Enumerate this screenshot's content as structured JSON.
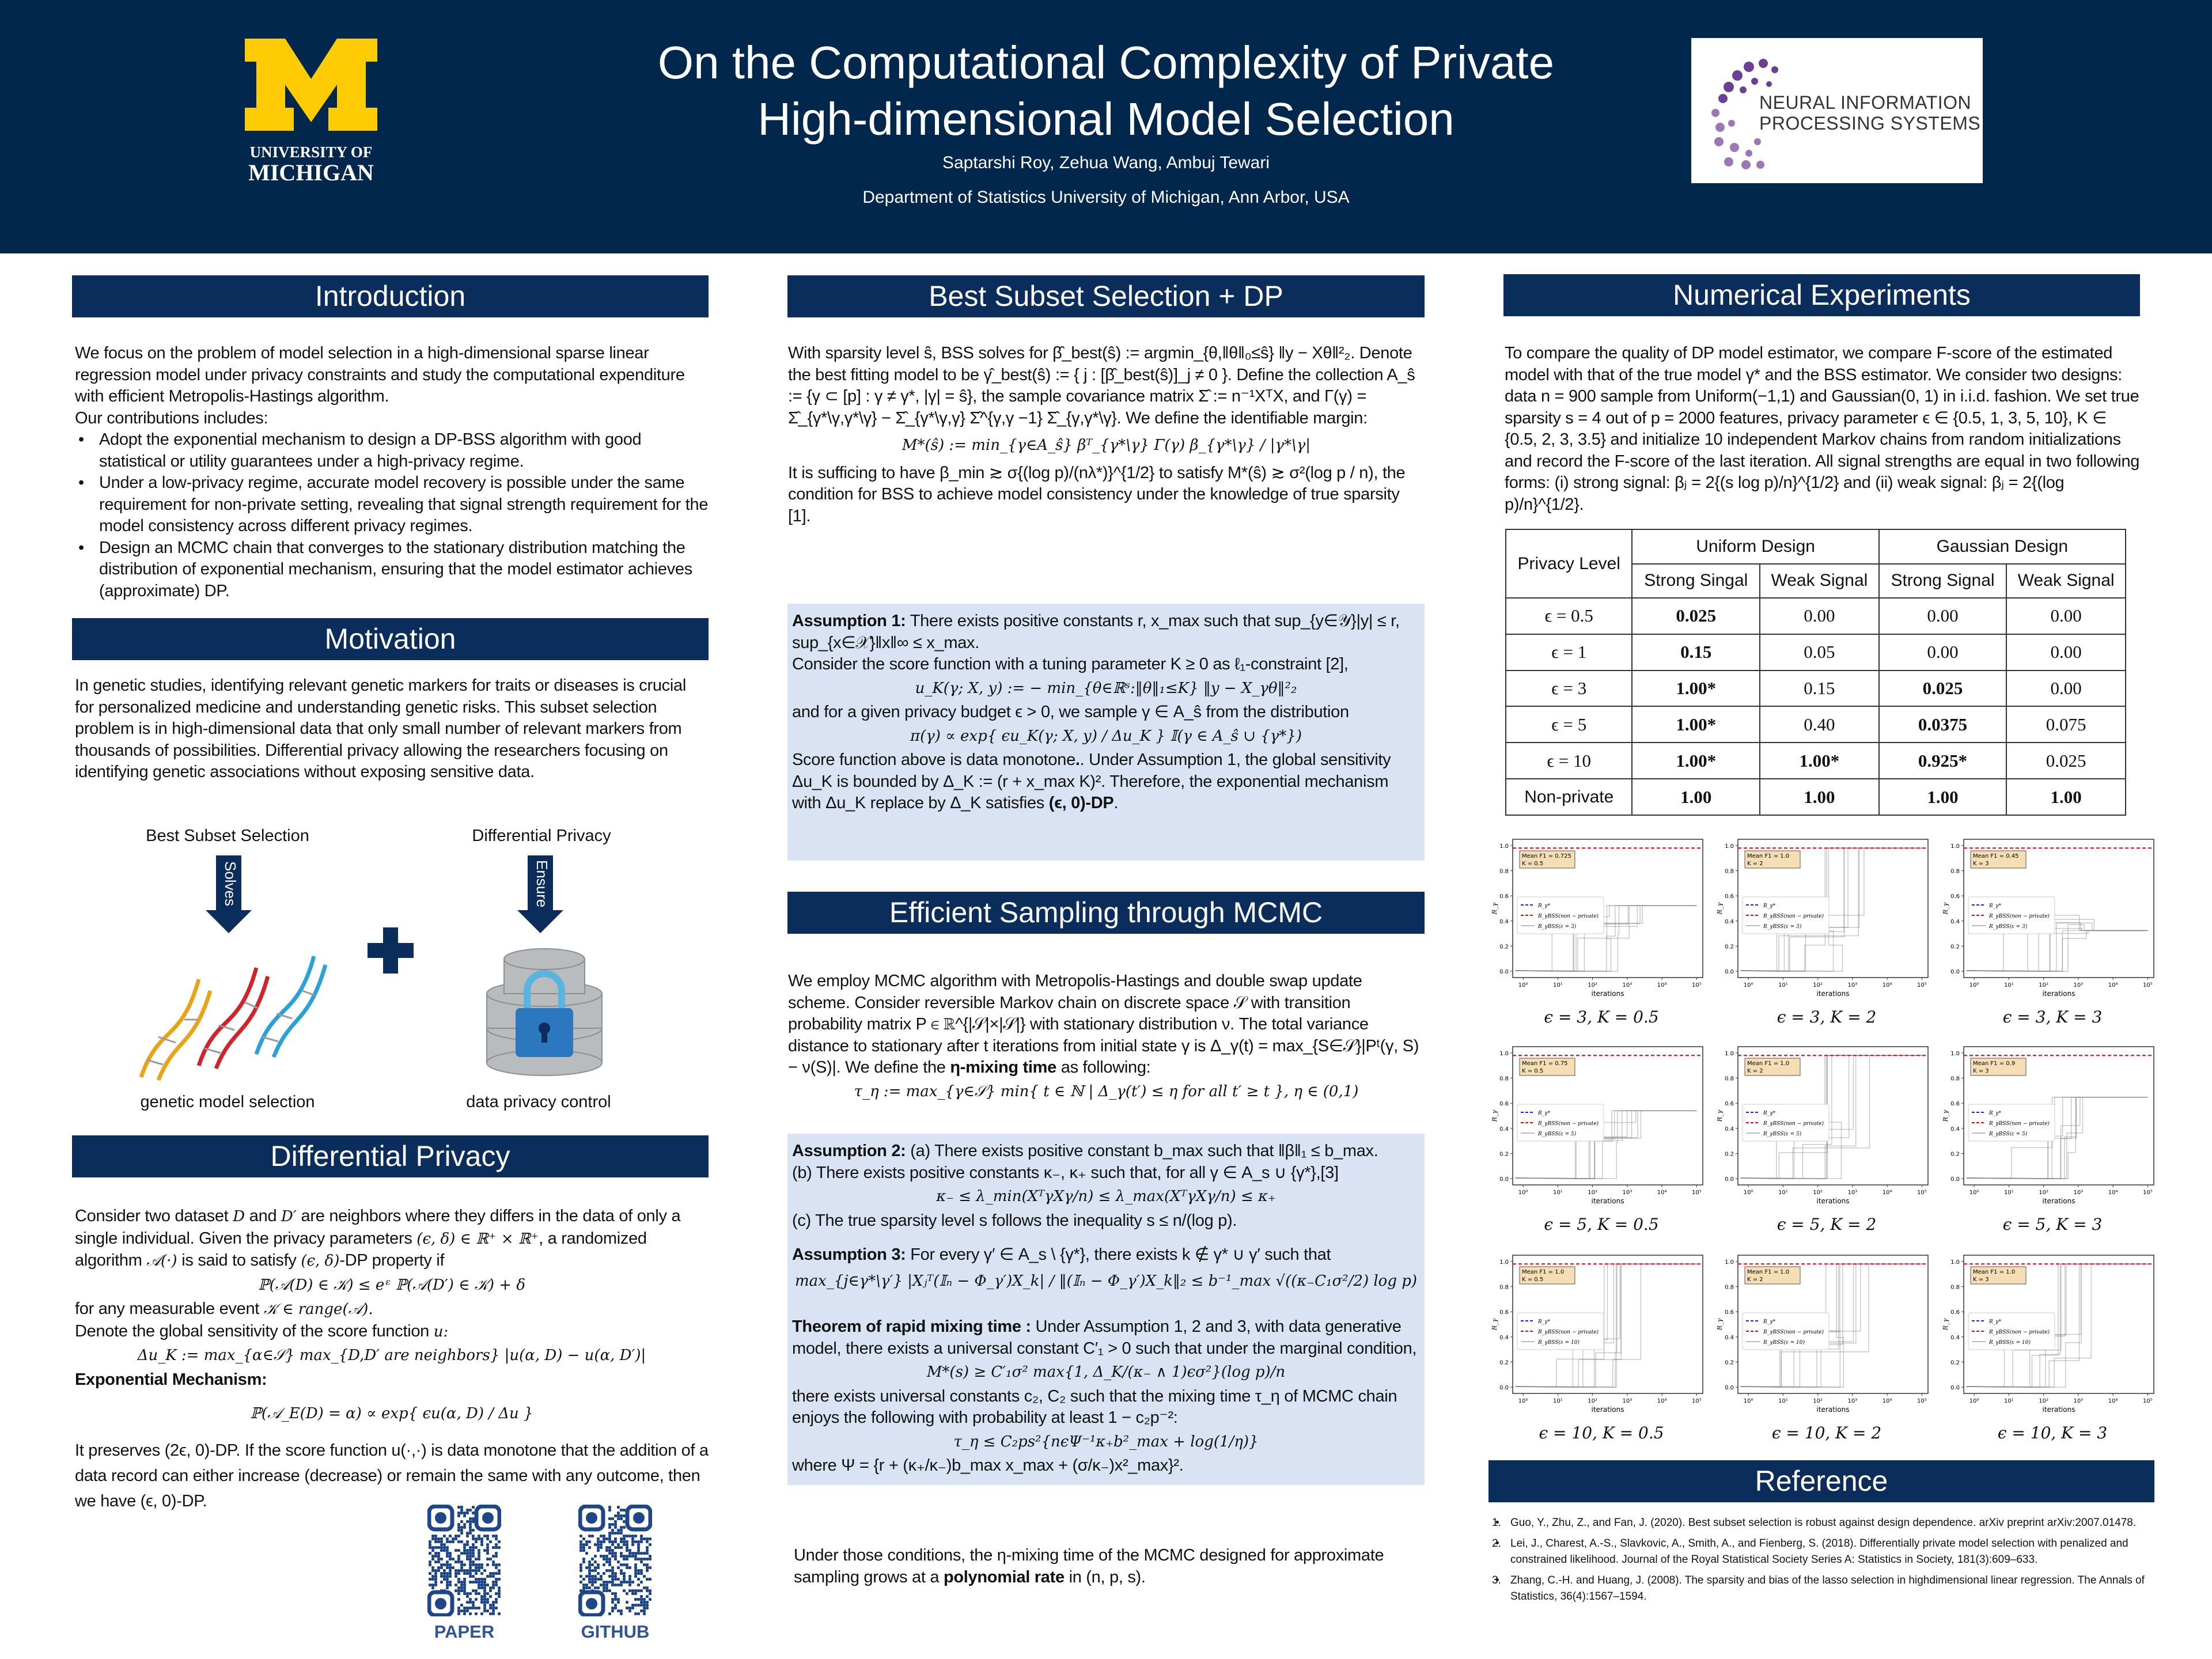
{
  "header": {
    "title_line1": "On the Computational Complexity of Private",
    "title_line2": "High-dimensional Model Selection",
    "authors": "Saptarshi Roy, Zehua Wang, Ambuj Tewari",
    "affiliation": "Department of Statistics University of Michigan, Ann Arbor, USA",
    "um_logo": {
      "line1": "UNIVERSITY OF",
      "line2": "MICHIGAN"
    },
    "neurips_logo": {
      "line1": "NEURAL INFORMATION",
      "line2": "PROCESSING SYSTEMS"
    }
  },
  "colors": {
    "navy": "#02274d",
    "section": "#0b2d5b",
    "box": "#dae3f3",
    "maize": "#ffcb05",
    "qr": "#1f4788"
  },
  "introduction": {
    "heading": "Introduction",
    "paragraph": "We focus on the problem of model selection in a high-dimensional sparse linear regression model under privacy constraints and study the computational expenditure with efficient Metropolis-Hastings algorithm.",
    "contributions_label": "Our contributions includes:",
    "bullets": [
      "Adopt the exponential mechanism to design a DP-BSS algorithm with good statistical or utility guarantees under a high-privacy regime.",
      "Under a low-privacy regime, accurate model recovery is possible under the same requirement for non-private setting, revealing that signal strength requirement for the model consistency across different privacy regimes.",
      "Design an MCMC chain that converges to the stationary distribution matching the distribution of exponential mechanism, ensuring that the model estimator achieves (approximate) DP."
    ]
  },
  "motivation": {
    "heading": "Motivation",
    "paragraph": "In genetic studies, identifying relevant genetic markers for traits or diseases is crucial for personalized medicine and understanding genetic risks. This subset selection problem is in high-dimensional data that only small number of relevant markers from thousands of possibilities. Differential privacy allowing the researchers focusing on identifying genetic associations without exposing sensitive data.",
    "diagram": {
      "left_label": "Best Subset Selection",
      "right_label": "Differential Privacy",
      "left_arrow": "Solves",
      "right_arrow": "Ensure",
      "left_caption": "genetic model selection",
      "right_caption": "data privacy control"
    }
  },
  "dp": {
    "heading": "Differential Privacy",
    "p1a": "Consider two dataset ",
    "p1m1": "D",
    "p1b": " and ",
    "p1m2": "D′",
    "p1c": " are neighbors where they differs in the data of only a single individual. Given the privacy parameters ",
    "p1m3": "(ϵ, δ) ∈ ℝ⁺ × ℝ⁺",
    "p1d": ", a randomized algorithm ",
    "p1m4": "𝒜(·)",
    "p1e": " is said to satisfy ",
    "p1m5": "(ϵ, δ)",
    "p1f": "-DP property if",
    "formula1": "ℙ(𝒜(D) ∈ 𝒦) ≤ eᵋ ℙ(𝒜(D′) ∈ 𝒦) + δ",
    "p2a": "for any measurable event ",
    "p2m": "𝒦 ∈ range(𝒜).",
    "p3a": "Denote the global sensitivity of the score function ",
    "p3m": "u:",
    "formula2": "Δu_K := max_{α∈𝒮} max_{D,D′ are neighbors} |u(α, D) − u(α, D′)|",
    "exp_label": "Exponential Mechanism:",
    "formula3": "ℙ(𝒜_E(D) = α) ∝ exp{ ϵu(α, D) / Δu }",
    "p4": "It preserves (2ϵ, 0)-DP. If the score function u(·,·) is data monotone that the addition of a data record can either increase (decrease) or remain the same with any outcome, then we have (ϵ, 0)-DP."
  },
  "qr": {
    "paper_label": "PAPER",
    "github_label": "GITHUB"
  },
  "bss": {
    "heading": "Best Subset Selection + DP",
    "p1": "With sparsity level ŝ, BSS solves for β̂_best(ŝ) := argmin_{θ,‖θ‖₀≤ŝ} ‖y − Xθ‖²₂. Denote the best fitting model to be γ̂_best(ŝ) := { j : [β̂_best(ŝ)]_j ≠ 0 }. Define the collection A_ŝ := {γ ⊂ [p] : γ ≠ γ*, |γ| = ŝ}, the sample covariance matrix Σ̂ := n⁻¹XᵀX, and Γ(γ) = Σ̂_{γ*\\γ,γ*\\γ} − Σ̂_{γ*\\γ,γ} Σ̂^{γ,γ −1} Σ̂_{γ,γ*\\γ}. We define the identifiable margin:",
    "formula": "M*(ŝ) := min_{γ∈A_ŝ}  βᵀ_{γ*\\γ} Γ(γ) β_{γ*\\γ} / |γ*\\γ|",
    "p2": "It is sufficing to have β_min ≳ σ{(log p)/(nλ*)}^{1/2} to satisfy M*(ŝ) ≳ σ²(log p / n), the condition for BSS to achieve model consistency under the knowledge of true sparsity [1].",
    "a1_label": "Assumption 1:",
    "a1_text": " There exists positive constants r, x_max such that sup_{y∈𝒴}|y| ≤ r, sup_{x∈𝒳}‖x‖∞ ≤ x_max.",
    "a1_p2": "Consider the score function with a tuning parameter K ≥ 0 as ℓ₁-constraint [2],",
    "a1_formula1": "u_K(γ; X, y) := − min_{θ∈ℝˢ:‖θ‖₁≤K} ‖y − X_γθ‖²₂",
    "a1_p3": "and for a given privacy budget ϵ > 0, we sample γ ∈ A_ŝ from the distribution",
    "a1_formula2": "π(γ) ∝ exp{ ϵu_K(γ; X, y) / Δu_K } 𝕀(γ ∈ A_ŝ ∪ {γ*})",
    "a1_p4a": "Score function above is data monotone",
    "a1_p4b": ". Under Assumption 1, the global sensitivity Δu_K is bounded by Δ_K := (r + x_max K)². Therefore, the exponential mechanism with Δu_K replace by Δ_K satisfies ",
    "a1_p4c": "(ϵ, 0)-DP",
    "a1_p4d": "."
  },
  "mcmc": {
    "heading": "Efficient Sampling through MCMC",
    "p1a": "We employ MCMC algorithm with Metropolis-Hastings and double swap update scheme. Consider reversible Markov chain on discrete space 𝒮 with transition probability matrix P ∈ ℝ^{|𝒮|×|𝒮|} with stationary distribution ν. The total variance distance to stationary after t iterations from initial state γ is Δ_γ(t) = max_{S∈𝒮}|Pᵗ(γ, S) − ν(S)|. We define the ",
    "p1b": "η-mixing time",
    "p1c": " as following:",
    "formula": "τ_η := max_{γ∈𝒮} min{ t ∈ ℕ | Δ_γ(t′) ≤ η for all t′ ≥ t }, η ∈ (0,1)",
    "a2_label": "Assumption 2:",
    "a2_a": " (a) There exists positive constant b_max such that ‖β‖₁ ≤ b_max.",
    "a2_b": "(b) There exists positive constants κ₋, κ₊ such that, for all γ ∈ A_s ∪ {γ*},[3]",
    "a2_formula": "κ₋ ≤ λ_min(XᵀγXγ/n) ≤ λ_max(XᵀγXγ/n) ≤ κ₊",
    "a2_c": "(c) The true sparsity level s follows the inequality s ≤ n/(log p).",
    "a3_label": "Assumption 3:",
    "a3_text": "  For every γ′ ∈ A_s \\ {γ*}, there exists k ∉ γ* ∪ γ′ such that",
    "a3_formula": "max_{j∈γ*\\γ′} |Xⱼᵀ(𝕀ₙ − Φ_γ′)X_k| / ‖(𝕀ₙ − Φ_γ′)X_k‖₂ ≤ b⁻¹_max √((κ₋C₁σ²/2) log p)",
    "thm_label": "Theorem of rapid mixing time :",
    "thm_text": " Under Assumption 1, 2 and 3, with data generative model, there exists a universal constant C′₁ > 0 such that under the marginal condition,",
    "thm_formula1": "M*(s) ≥ C′₁σ² max{1, Δ_K/(κ₋ ∧ 1)ϵσ²}(log p)/n",
    "thm_text2": "there exists universal constants c₂, C₂ such that the mixing time τ_η of MCMC chain enjoys the following with probability at least 1 − c₂p⁻²:",
    "thm_formula2": "τ_η ≤ C₂ps²{nϵΨ⁻¹κ₊b²_max + log(1/η)}",
    "thm_text3": "where Ψ = {r + (κ₊/κ₋)b_max x_max + (σ/κ₋)x²_max}².",
    "p_final_a": "Under those conditions, the η-mixing time of the MCMC designed for approximate sampling grows at a ",
    "p_final_b": "polynomial rate",
    "p_final_c": " in (n, p, s)."
  },
  "experiments": {
    "heading": "Numerical Experiments",
    "paragraph": "To compare the quality of DP model estimator, we compare F-score of the estimated model with that of the true model γ* and the BSS estimator. We consider two designs: data n = 900 sample from Uniform(−1,1) and Gaussian(0, 1) in i.i.d. fashion. We set true sparsity s = 4 out of p = 2000 features, privacy parameter ϵ ∈ {0.5, 1, 3, 5, 10}, K ∈ {0.5, 2, 3, 3.5} and initialize 10 independent Markov chains from random initializations and record the F-score of the last iteration. All signal strengths are equal in two following forms: (i) strong signal: βⱼ = 2{(s log p)/n}^{1/2}  and (ii) weak signal: βⱼ = 2{(log p)/n}^{1/2}.",
    "table": {
      "corner": "Privacy Level",
      "groups": [
        "Uniform Design",
        "Gaussian Design"
      ],
      "subheaders": [
        "Strong Singal",
        "Weak Signal",
        "Strong Signal",
        "Weak Signal"
      ],
      "rows": [
        {
          "label": "ϵ = 0.5",
          "cells": [
            {
              "v": "0.025",
              "b": true
            },
            {
              "v": "0.00"
            },
            {
              "v": "0.00"
            },
            {
              "v": "0.00"
            }
          ]
        },
        {
          "label": "ϵ = 1",
          "cells": [
            {
              "v": "0.15",
              "b": true
            },
            {
              "v": "0.05"
            },
            {
              "v": "0.00"
            },
            {
              "v": "0.00"
            }
          ]
        },
        {
          "label": "ϵ = 3",
          "cells": [
            {
              "v": "1.00*",
              "b": true
            },
            {
              "v": "0.15"
            },
            {
              "v": "0.025",
              "b": true
            },
            {
              "v": "0.00"
            }
          ]
        },
        {
          "label": "ϵ = 5",
          "cells": [
            {
              "v": "1.00*",
              "b": true
            },
            {
              "v": "0.40"
            },
            {
              "v": "0.0375",
              "b": true
            },
            {
              "v": "0.075"
            }
          ]
        },
        {
          "label": "ϵ = 10",
          "cells": [
            {
              "v": "1.00*",
              "b": true
            },
            {
              "v": "1.00*",
              "b": true
            },
            {
              "v": "0.925*",
              "b": true
            },
            {
              "v": "0.025"
            }
          ]
        },
        {
          "label": "Non-private",
          "cells": [
            {
              "v": "1.00",
              "b": true
            },
            {
              "v": "1.00",
              "b": true
            },
            {
              "v": "1.00",
              "b": true
            },
            {
              "v": "1.00",
              "b": true
            }
          ]
        }
      ]
    }
  },
  "chart_data": {
    "type": "line",
    "xlabel": "iterations",
    "ylabel": "R_γ",
    "xscale": "log",
    "xlim": [
      0.5,
      150000
    ],
    "ylim": [
      -0.05,
      1.05
    ],
    "xticks": [
      "10⁰",
      "10¹",
      "10²",
      "10³",
      "10⁴",
      "10⁵"
    ],
    "yticks": [
      "0.0",
      "0.2",
      "0.4",
      "0.6",
      "0.8",
      "1.0"
    ],
    "reference_level_nonprivate": 0.98,
    "panels": [
      {
        "caption": "ϵ = 3, K = 0.5",
        "epsilon": 3,
        "K": 0.5,
        "box": "Mean F1  = 0.725\n K = 0.5",
        "mean_f1": 0.725,
        "legend": [
          "R_γ*",
          "R_γBSS(non − private)",
          "R_γBSS(ε = 3)"
        ]
      },
      {
        "caption": "ϵ = 3, K = 2",
        "epsilon": 3,
        "K": 2,
        "box": "Mean F1  = 1.0\n K = 2",
        "mean_f1": 1.0,
        "legend": [
          "R_γ*",
          "R_γBSS(non − private)",
          "R_γBSS(ε = 3)"
        ]
      },
      {
        "caption": "ϵ = 3, K = 3",
        "epsilon": 3,
        "K": 3,
        "box": "Mean F1  = 0.45\n K = 3",
        "mean_f1": 0.45,
        "legend": [
          "R_γ*",
          "R_γBSS(non − private)",
          "R_γBSS(ε = 3)"
        ]
      },
      {
        "caption": "ϵ = 5, K = 0.5",
        "epsilon": 5,
        "K": 0.5,
        "box": "Mean F1  = 0.75\n K = 0.5",
        "mean_f1": 0.75,
        "legend": [
          "R_γ*",
          "R_γBSS(non − private)",
          "R_γBSS(ε = 5)"
        ]
      },
      {
        "caption": "ϵ = 5, K = 2",
        "epsilon": 5,
        "K": 2,
        "box": "Mean F1  = 1.0\n K = 2",
        "mean_f1": 1.0,
        "legend": [
          "R_γ*",
          "R_γBSS(non − private)",
          "R_γBSS(ε = 5)"
        ]
      },
      {
        "caption": "ϵ = 5, K = 3",
        "epsilon": 5,
        "K": 3,
        "box": "Mean F1  = 0.9\n K = 3",
        "mean_f1": 0.9,
        "legend": [
          "R_γ*",
          "R_γBSS(non − private)",
          "R_γBSS(ε = 5)"
        ]
      },
      {
        "caption": "ϵ = 10, K = 0.5",
        "epsilon": 10,
        "K": 0.5,
        "box": "Mean F1  = 1.0\n K = 0.5",
        "mean_f1": 1.0,
        "legend": [
          "R_γ*",
          "R_γBSS(non − private)",
          "R_γBSS(ε = 10)"
        ]
      },
      {
        "caption": "ϵ = 10, K = 2",
        "epsilon": 10,
        "K": 2,
        "box": "Mean F1  = 1.0\n K = 2",
        "mean_f1": 1.0,
        "legend": [
          "R_γ*",
          "R_γBSS(non − private)",
          "R_γBSS(ε = 10)"
        ]
      },
      {
        "caption": "ϵ = 10, K = 3",
        "epsilon": 10,
        "K": 3,
        "box": "Mean F1  = 1.0\n K = 3",
        "mean_f1": 1.0,
        "legend": [
          "R_γ*",
          "R_γBSS(non − private)",
          "R_γBSS(ε = 10)"
        ]
      }
    ]
  },
  "references": {
    "heading": "Reference",
    "items": [
      {
        "n": "1.",
        "text": "Guo, Y., Zhu, Z., and Fan, J. (2020). Best subset selection is robust against design dependence. arXiv preprint arXiv:2007.01478."
      },
      {
        "n": "2.",
        "text": "Lei, J., Charest, A.-S., Slavkovic, A., Smith, A., and Fienberg, S. (2018). Differentially private model selection with penalized and constrained likelihood. Journal of the Royal Statistical Society Series A: Statistics in Society, 181(3):609–633."
      },
      {
        "n": "3.",
        "text": "Zhang, C.-H. and Huang, J. (2008). The sparsity and bias of the lasso selection in highdimensional linear regression. The Annals of Statistics, 36(4):1567–1594."
      }
    ]
  }
}
